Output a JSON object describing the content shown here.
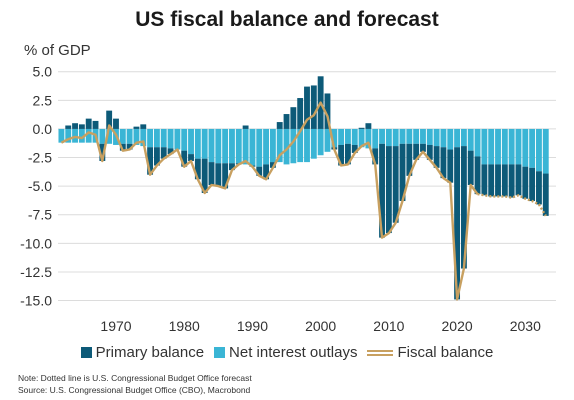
{
  "chart_data": {
    "type": "bar",
    "title": "US fiscal balance and forecast",
    "ylabel": "% of GDP",
    "ylim": [
      -16,
      5.5
    ],
    "y_ticks": [
      5.0,
      2.5,
      0.0,
      -2.5,
      -5.0,
      -7.5,
      -10.0,
      -12.5,
      -15.0
    ],
    "y_tick_labels": [
      "5.0",
      "2.5",
      "0.0",
      "-2.5",
      "-5.0",
      "-7.5",
      "-10.0",
      "-12.5",
      "-15.0"
    ],
    "x_ticks": [
      1970,
      1980,
      1990,
      2000,
      2010,
      2020,
      2030
    ],
    "x_tick_labels": [
      "1970",
      "1980",
      "1990",
      "2000",
      "2010",
      "2020",
      "2030"
    ],
    "xlim": [
      1961.5,
      2034.5
    ],
    "grid": "horizontal",
    "legend_position": "bottom",
    "years": [
      1962,
      1963,
      1964,
      1965,
      1966,
      1967,
      1968,
      1969,
      1970,
      1971,
      1972,
      1973,
      1974,
      1975,
      1976,
      1977,
      1978,
      1979,
      1980,
      1981,
      1982,
      1983,
      1984,
      1985,
      1986,
      1987,
      1988,
      1989,
      1990,
      1991,
      1992,
      1993,
      1994,
      1995,
      1996,
      1997,
      1998,
      1999,
      2000,
      2001,
      2002,
      2003,
      2004,
      2005,
      2006,
      2007,
      2008,
      2009,
      2010,
      2011,
      2012,
      2013,
      2014,
      2015,
      2016,
      2017,
      2018,
      2019,
      2020,
      2021,
      2022,
      2023,
      2024,
      2025,
      2026,
      2027,
      2028,
      2029,
      2030,
      2031,
      2032,
      2033
    ],
    "series": [
      {
        "name": "Primary balance",
        "values": [
          0.0,
          0.3,
          0.5,
          0.4,
          0.9,
          0.7,
          -1.5,
          1.6,
          0.9,
          -0.6,
          -0.5,
          0.2,
          0.4,
          -2.4,
          -1.6,
          -1.0,
          -0.5,
          0.0,
          -1.4,
          -0.6,
          -1.8,
          -3.0,
          -2.0,
          -2.0,
          -2.2,
          -0.6,
          -0.1,
          0.3,
          -0.1,
          -0.8,
          -1.3,
          -0.5,
          0.6,
          1.3,
          1.9,
          2.7,
          3.7,
          3.8,
          4.6,
          3.1,
          -0.2,
          -1.8,
          -1.8,
          -0.7,
          0.1,
          0.5,
          -1.4,
          -8.2,
          -7.6,
          -6.7,
          -5.0,
          -2.8,
          -1.4,
          -0.7,
          -1.3,
          -1.9,
          -2.7,
          -2.9,
          -13.3,
          -10.7,
          -3.0,
          -3.3,
          -2.7,
          -2.8,
          -2.8,
          -2.8,
          -2.9,
          -2.7,
          -2.8,
          -2.9,
          -2.9,
          -3.7
        ]
      },
      {
        "name": "Net interest outlays",
        "values": [
          -1.2,
          -1.2,
          -1.2,
          -1.2,
          -1.2,
          -1.2,
          -1.3,
          -1.3,
          -1.4,
          -1.3,
          -1.3,
          -1.4,
          -1.5,
          -1.6,
          -1.6,
          -1.6,
          -1.7,
          -1.8,
          -1.9,
          -2.2,
          -2.6,
          -2.6,
          -2.9,
          -3.0,
          -3.0,
          -3.0,
          -3.0,
          -3.1,
          -3.2,
          -3.3,
          -3.1,
          -2.9,
          -2.9,
          -3.1,
          -3.0,
          -2.9,
          -2.9,
          -2.6,
          -2.3,
          -2.0,
          -1.6,
          -1.4,
          -1.3,
          -1.4,
          -1.6,
          -1.7,
          -1.7,
          -1.3,
          -1.5,
          -1.5,
          -1.3,
          -1.3,
          -1.3,
          -1.3,
          -1.4,
          -1.5,
          -1.6,
          -1.8,
          -1.6,
          -1.5,
          -1.9,
          -2.4,
          -3.1,
          -3.1,
          -3.1,
          -3.1,
          -3.1,
          -3.1,
          -3.3,
          -3.4,
          -3.7,
          -3.9
        ]
      },
      {
        "name": "Fiscal balance",
        "type": "line",
        "values": [
          -1.2,
          -0.9,
          -0.7,
          -0.8,
          -0.3,
          -0.5,
          -2.8,
          0.3,
          -0.5,
          -1.9,
          -1.8,
          -1.2,
          -1.1,
          -4.0,
          -3.2,
          -2.6,
          -2.2,
          -1.8,
          -3.3,
          -2.8,
          -4.4,
          -5.6,
          -4.9,
          -5.0,
          -5.2,
          -3.6,
          -3.1,
          -2.8,
          -3.3,
          -4.1,
          -4.4,
          -3.4,
          -2.3,
          -1.8,
          -1.1,
          -0.2,
          0.8,
          1.2,
          2.3,
          1.1,
          -1.8,
          -3.2,
          -3.1,
          -2.1,
          -1.5,
          -1.2,
          -3.1,
          -9.5,
          -9.1,
          -8.2,
          -6.3,
          -4.1,
          -2.7,
          -2.0,
          -2.7,
          -3.4,
          -4.3,
          -4.7,
          -14.9,
          -12.2,
          -4.9,
          -5.7,
          -5.8,
          -5.9,
          -5.9,
          -5.9,
          -6.0,
          -5.8,
          -6.1,
          -6.3,
          -6.6,
          -7.6
        ]
      }
    ],
    "colors": {
      "primary_balance": "#0d5a78",
      "net_interest": "#3ab5d5",
      "fiscal_balance": "#c8a060",
      "grid": "#dcdcdc"
    }
  },
  "legend": {
    "primary": "Primary balance",
    "interest": "Net interest outlays",
    "fiscal": "Fiscal balance"
  },
  "footer": {
    "note": "Note: Dotted line is U.S. Congressional Budget Office forecast",
    "source": "Source: U.S. Congressional Budget Office (CBO), Macrobond"
  }
}
